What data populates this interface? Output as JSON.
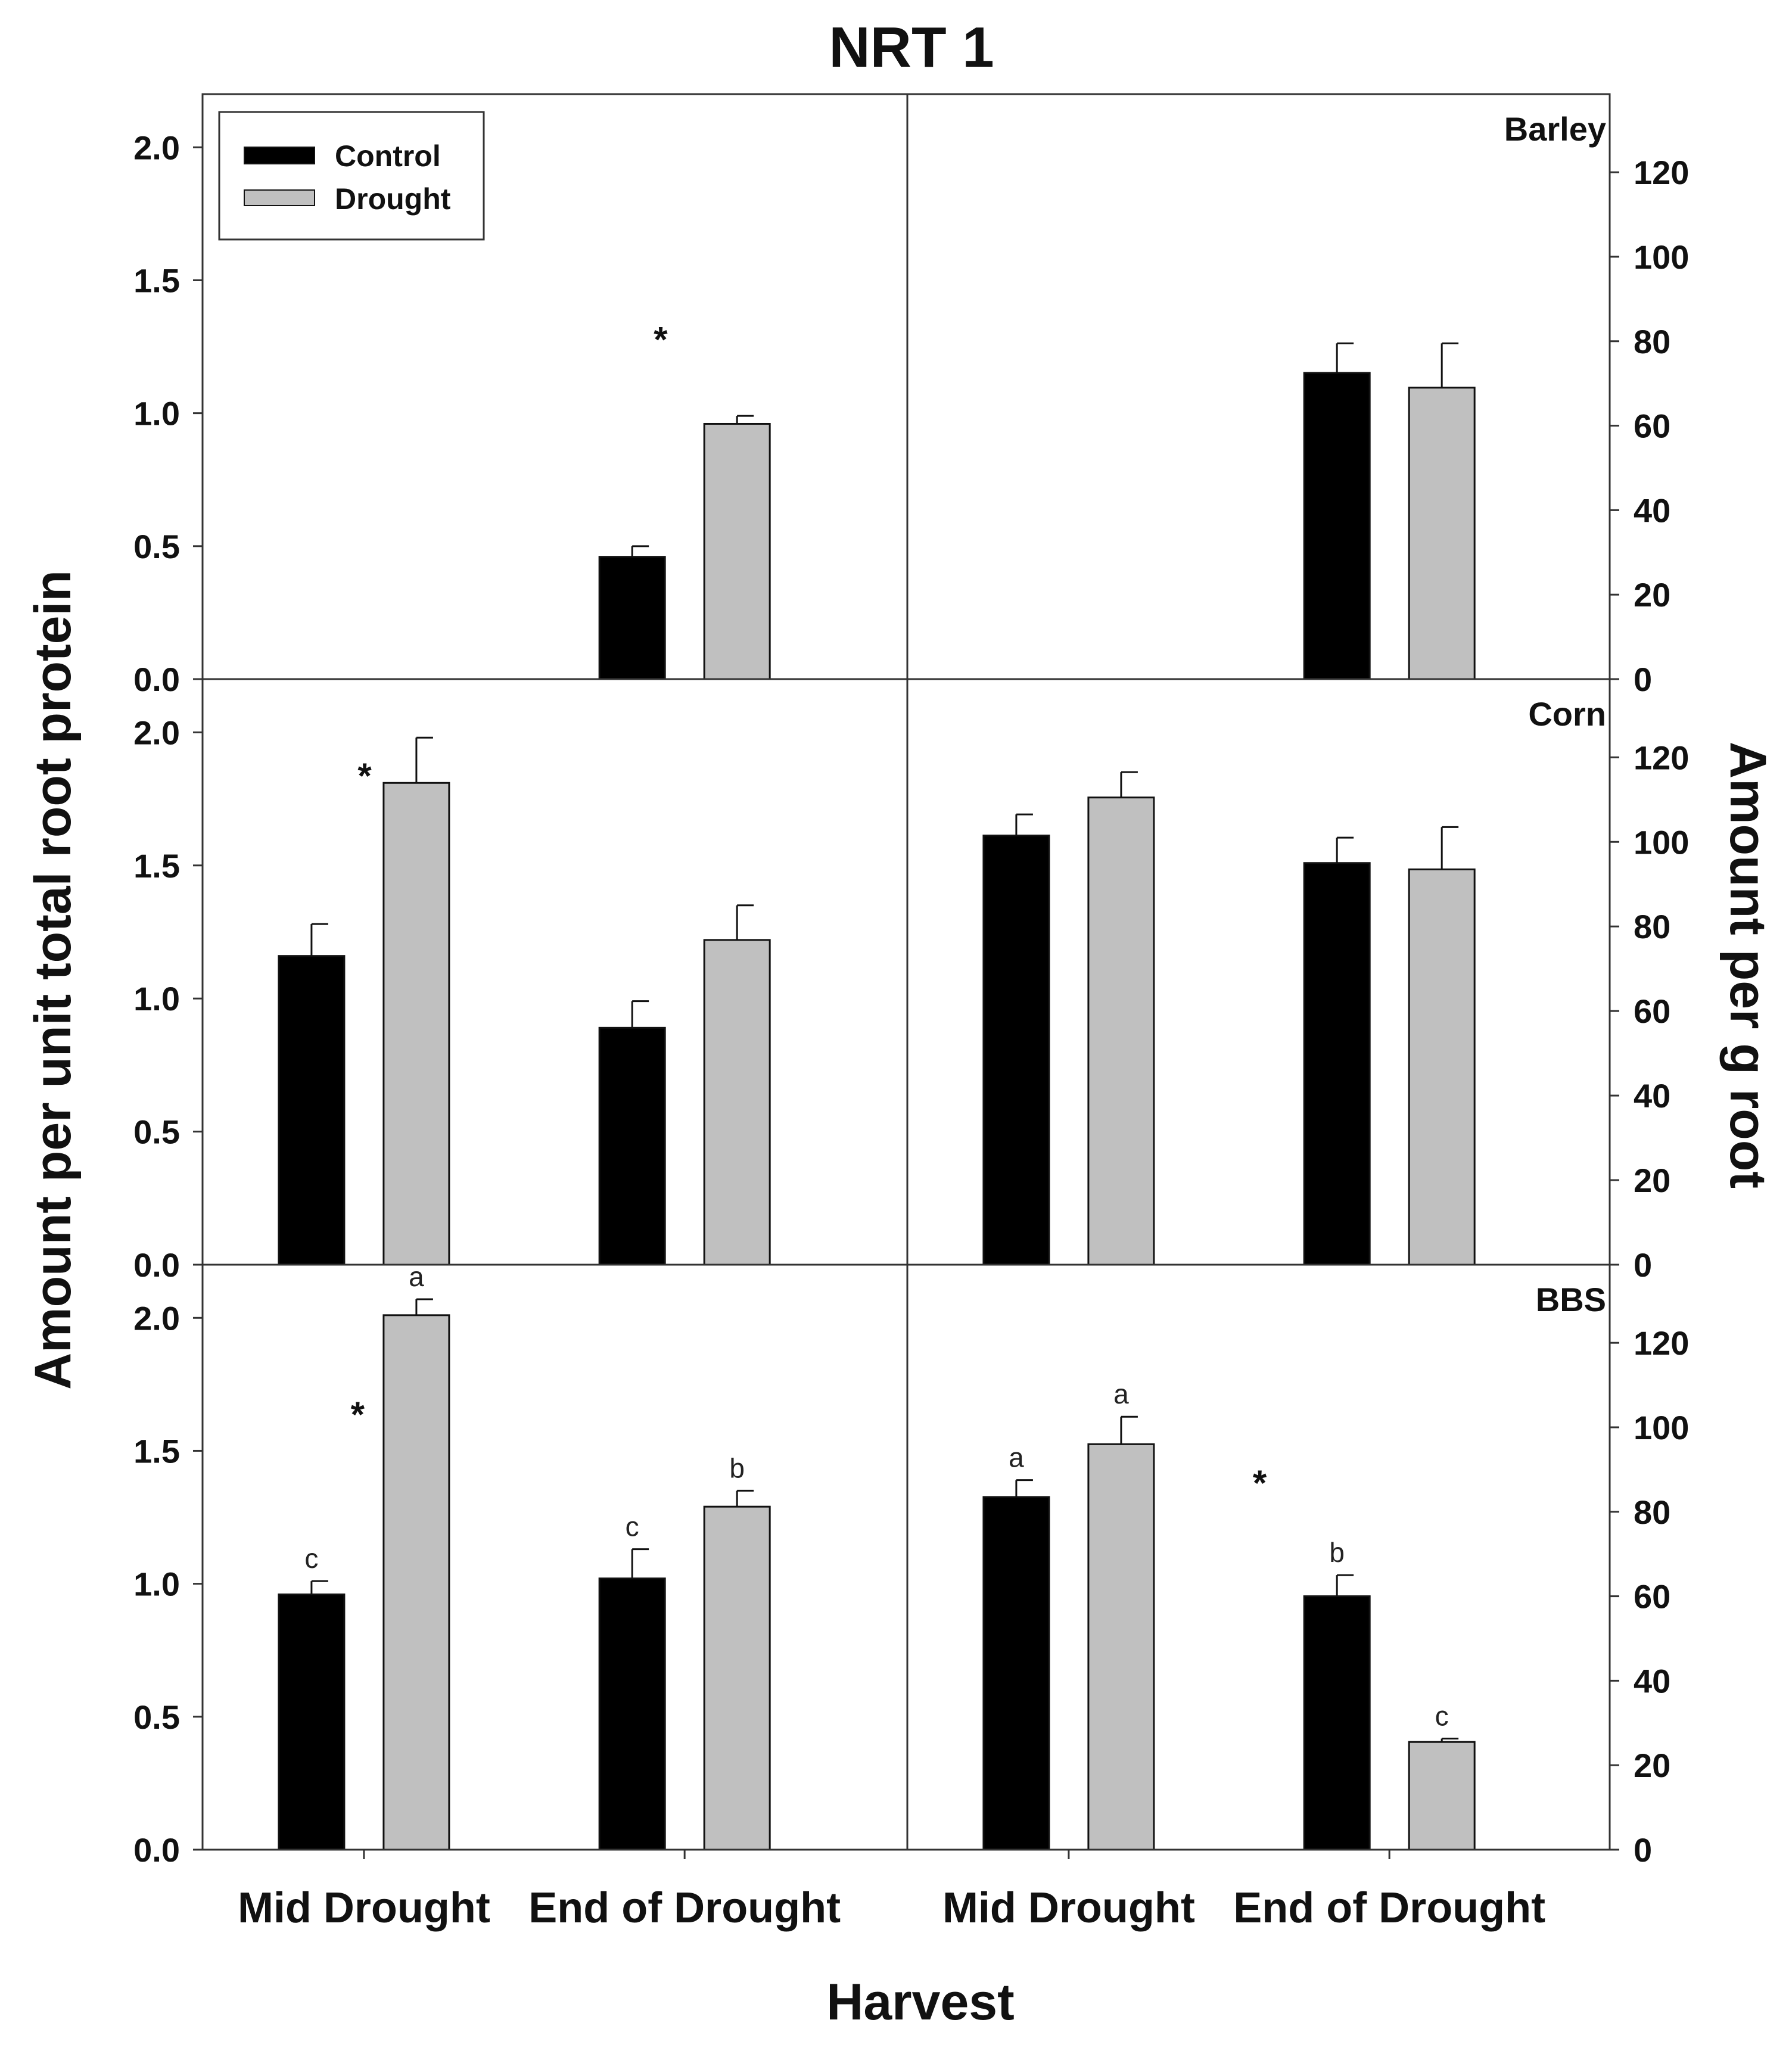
{
  "title": "NRT 1",
  "xlabel": "Harvest",
  "ylabel_left": "Amount per unit total root protein",
  "ylabel_right": "Amount per g root",
  "colors": {
    "control": "#000000",
    "drought": "#c0c0c0",
    "frame": "#333333"
  },
  "legend": [
    {
      "label": "Control",
      "color": "#000000"
    },
    {
      "label": "Drought",
      "color": "#c0c0c0"
    }
  ],
  "chart_data": [
    {
      "type": "bar",
      "panel": "Barley",
      "axis": "left",
      "ylabel": "Amount per unit total root protein",
      "ylim": [
        0,
        2.2
      ],
      "yticks": [
        "0.0",
        "0.5",
        "1.0",
        "1.5",
        "2.0"
      ],
      "categories": [
        "Mid Drought",
        "End of Drought"
      ],
      "series": [
        {
          "name": "Control",
          "values": [
            null,
            0.46
          ],
          "errors": [
            null,
            0.04
          ],
          "letters": [
            "",
            ""
          ]
        },
        {
          "name": "Drought",
          "values": [
            null,
            0.96
          ],
          "errors": [
            null,
            0.03
          ],
          "letters": [
            "",
            ""
          ]
        }
      ],
      "annotations": [
        {
          "text": "*",
          "x": 0.65,
          "y": 1.28
        }
      ]
    },
    {
      "type": "bar",
      "panel": "Barley",
      "axis": "right",
      "ylabel": "Amount per g root",
      "ylim": [
        0,
        138.5
      ],
      "yticks": [
        "0",
        "20",
        "40",
        "60",
        "80",
        "100",
        "120"
      ],
      "categories": [
        "Mid Drought",
        "End of Drought"
      ],
      "series": [
        {
          "name": "Control",
          "values": [
            null,
            72.5
          ],
          "errors": [
            null,
            7.0
          ],
          "letters": [
            "",
            ""
          ]
        },
        {
          "name": "Drought",
          "values": [
            null,
            69.0
          ],
          "errors": [
            null,
            10.5
          ],
          "letters": [
            "",
            ""
          ]
        }
      ],
      "annotations": [],
      "label": "Barley"
    },
    {
      "type": "bar",
      "panel": "Corn",
      "axis": "left",
      "ylabel": "Amount per unit total root protein",
      "ylim": [
        0,
        2.2
      ],
      "yticks": [
        "0.0",
        "0.5",
        "1.0",
        "1.5",
        "2.0"
      ],
      "categories": [
        "Mid Drought",
        "End of Drought"
      ],
      "series": [
        {
          "name": "Control",
          "values": [
            1.16,
            0.89
          ],
          "errors": [
            0.12,
            0.1
          ],
          "letters": [
            "",
            ""
          ]
        },
        {
          "name": "Drought",
          "values": [
            1.81,
            1.22
          ],
          "errors": [
            0.17,
            0.13
          ],
          "letters": [
            "",
            ""
          ]
        }
      ],
      "annotations": [
        {
          "text": "*",
          "x": 0.23,
          "y": 1.84
        }
      ]
    },
    {
      "type": "bar",
      "panel": "Corn",
      "axis": "right",
      "ylabel": "Amount per g root",
      "ylim": [
        0,
        138.5
      ],
      "yticks": [
        "0",
        "20",
        "40",
        "60",
        "80",
        "100",
        "120"
      ],
      "categories": [
        "Mid Drought",
        "End of Drought"
      ],
      "series": [
        {
          "name": "Control",
          "values": [
            101.5,
            95.0
          ],
          "errors": [
            5.0,
            6.0
          ],
          "letters": [
            "",
            ""
          ]
        },
        {
          "name": "Drought",
          "values": [
            110.5,
            93.5
          ],
          "errors": [
            6.0,
            10.0
          ],
          "letters": [
            "",
            ""
          ]
        }
      ],
      "annotations": [],
      "label": "Corn"
    },
    {
      "type": "bar",
      "panel": "BBS",
      "axis": "left",
      "ylabel": "Amount per unit total root protein",
      "ylim": [
        0,
        2.2
      ],
      "yticks": [
        "0.0",
        "0.5",
        "1.0",
        "1.5",
        "2.0"
      ],
      "categories": [
        "Mid Drought",
        "End of Drought"
      ],
      "series": [
        {
          "name": "Control",
          "values": [
            0.96,
            1.02
          ],
          "errors": [
            0.05,
            0.11
          ],
          "letters": [
            "c",
            "c"
          ]
        },
        {
          "name": "Drought",
          "values": [
            2.01,
            1.29
          ],
          "errors": [
            0.06,
            0.06
          ],
          "letters": [
            "a",
            "b"
          ]
        }
      ],
      "annotations": [
        {
          "text": "*",
          "x": 0.22,
          "y": 1.64
        }
      ]
    },
    {
      "type": "bar",
      "panel": "BBS",
      "axis": "right",
      "ylabel": "Amount per g root",
      "ylim": [
        0,
        138.5
      ],
      "yticks": [
        "0",
        "20",
        "40",
        "60",
        "80",
        "100",
        "120"
      ],
      "categories": [
        "Mid Drought",
        "End of Drought"
      ],
      "series": [
        {
          "name": "Control",
          "values": [
            83.5,
            60.0
          ],
          "errors": [
            4.0,
            5.0
          ],
          "letters": [
            "a",
            "b"
          ]
        },
        {
          "name": "Drought",
          "values": [
            96.0,
            25.5
          ],
          "errors": [
            6.5,
            0.8
          ],
          "letters": [
            "a",
            "c"
          ]
        }
      ],
      "annotations": [
        {
          "text": "*",
          "x": 0.5,
          "y": 87.0
        }
      ],
      "label": "BBS"
    }
  ]
}
